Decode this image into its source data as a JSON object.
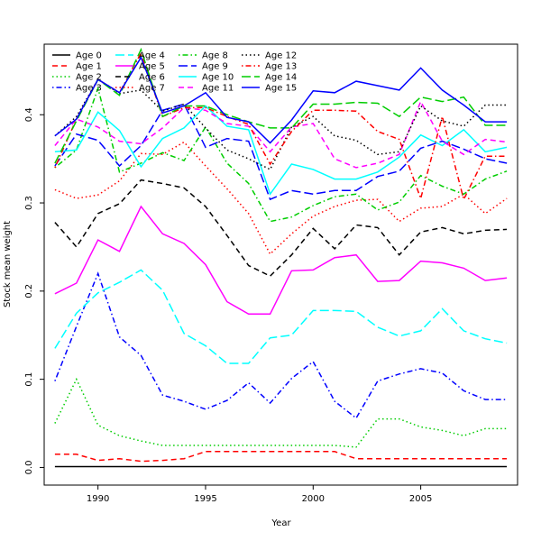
{
  "chart_data": {
    "type": "line",
    "title": "",
    "xlabel": "Year",
    "ylabel": "Stock mean weight",
    "xlim": [
      1987.5,
      2009.5
    ],
    "ylim": [
      -0.02,
      0.48
    ],
    "x_ticks": [
      1990,
      1995,
      2000,
      2005
    ],
    "y_ticks": [
      0.0,
      0.1,
      0.2,
      0.3,
      0.4
    ],
    "y_tick_labels": [
      "0.0",
      "0.1",
      "0.2",
      "0.3",
      "0.4"
    ],
    "grid": false,
    "legend_position": "top-left",
    "x": [
      1988,
      1989,
      1990,
      1991,
      1992,
      1993,
      1994,
      1995,
      1996,
      1997,
      1998,
      1999,
      2000,
      2001,
      2002,
      2003,
      2004,
      2005,
      2006,
      2007,
      2008,
      2009
    ],
    "series": [
      {
        "name": "Age 0",
        "color": "#000000",
        "dash": "solid",
        "values": [
          0.001,
          0.001,
          0.001,
          0.001,
          0.001,
          0.001,
          0.001,
          0.001,
          0.001,
          0.001,
          0.001,
          0.001,
          0.001,
          0.001,
          0.001,
          0.001,
          0.001,
          0.001,
          0.001,
          0.001,
          0.001,
          0.001
        ]
      },
      {
        "name": "Age 1",
        "color": "#ff0000",
        "dash": "dashed",
        "values": [
          0.015,
          0.015,
          0.008,
          0.01,
          0.007,
          0.008,
          0.01,
          0.018,
          0.018,
          0.018,
          0.018,
          0.018,
          0.018,
          0.018,
          0.01,
          0.01,
          0.01,
          0.01,
          0.01,
          0.01,
          0.01,
          0.01
        ]
      },
      {
        "name": "Age 2",
        "color": "#00cd00",
        "dash": "dotted",
        "values": [
          0.05,
          0.1,
          0.048,
          0.036,
          0.03,
          0.025,
          0.025,
          0.025,
          0.025,
          0.025,
          0.025,
          0.025,
          0.025,
          0.025,
          0.023,
          0.055,
          0.055,
          0.046,
          0.042,
          0.036,
          0.044,
          0.044
        ]
      },
      {
        "name": "Age 3",
        "color": "#0000ff",
        "dash": "dotdash",
        "values": [
          0.098,
          0.16,
          0.22,
          0.148,
          0.127,
          0.082,
          0.075,
          0.066,
          0.076,
          0.096,
          0.073,
          0.101,
          0.12,
          0.075,
          0.056,
          0.098,
          0.106,
          0.112,
          0.107,
          0.087,
          0.077,
          0.077
        ]
      },
      {
        "name": "Age 4",
        "color": "#00ffff",
        "dash": "longdash",
        "values": [
          0.135,
          0.175,
          0.198,
          0.21,
          0.224,
          0.201,
          0.152,
          0.138,
          0.118,
          0.118,
          0.147,
          0.15,
          0.178,
          0.178,
          0.177,
          0.159,
          0.149,
          0.155,
          0.18,
          0.155,
          0.146,
          0.141
        ]
      },
      {
        "name": "Age 5",
        "color": "#ff00ff",
        "dash": "solid",
        "values": [
          0.197,
          0.209,
          0.258,
          0.245,
          0.296,
          0.265,
          0.254,
          0.23,
          0.188,
          0.174,
          0.174,
          0.223,
          0.224,
          0.238,
          0.241,
          0.211,
          0.212,
          0.234,
          0.232,
          0.226,
          0.212,
          0.215
        ]
      },
      {
        "name": "Age 6",
        "color": "#000000",
        "dash": "dashed",
        "values": [
          0.278,
          0.25,
          0.288,
          0.299,
          0.326,
          0.322,
          0.317,
          0.296,
          0.263,
          0.229,
          0.217,
          0.241,
          0.271,
          0.248,
          0.275,
          0.272,
          0.241,
          0.267,
          0.272,
          0.265,
          0.269,
          0.27
        ]
      },
      {
        "name": "Age 7",
        "color": "#ff0000",
        "dash": "dotted",
        "values": [
          0.315,
          0.305,
          0.309,
          0.325,
          0.356,
          0.355,
          0.369,
          0.342,
          0.316,
          0.288,
          0.242,
          0.265,
          0.285,
          0.296,
          0.303,
          0.304,
          0.279,
          0.294,
          0.296,
          0.31,
          0.288,
          0.305
        ]
      },
      {
        "name": "Age 8",
        "color": "#00cd00",
        "dash": "dotdash",
        "values": [
          0.34,
          0.36,
          0.43,
          0.335,
          0.345,
          0.357,
          0.348,
          0.386,
          0.345,
          0.322,
          0.279,
          0.284,
          0.297,
          0.307,
          0.31,
          0.292,
          0.301,
          0.331,
          0.319,
          0.31,
          0.327,
          0.336
        ]
      },
      {
        "name": "Age 9",
        "color": "#0000ff",
        "dash": "longdash",
        "values": [
          0.342,
          0.378,
          0.371,
          0.342,
          0.365,
          0.405,
          0.412,
          0.363,
          0.373,
          0.37,
          0.304,
          0.314,
          0.31,
          0.314,
          0.314,
          0.33,
          0.336,
          0.362,
          0.37,
          0.361,
          0.35,
          0.345
        ]
      },
      {
        "name": "Age 10",
        "color": "#00ffff",
        "dash": "solid",
        "values": [
          0.358,
          0.36,
          0.403,
          0.382,
          0.341,
          0.373,
          0.385,
          0.41,
          0.387,
          0.383,
          0.31,
          0.344,
          0.338,
          0.327,
          0.327,
          0.335,
          0.352,
          0.377,
          0.365,
          0.383,
          0.358,
          0.363
        ]
      },
      {
        "name": "Age 11",
        "color": "#ff00ff",
        "dash": "dashed",
        "values": [
          0.365,
          0.395,
          0.386,
          0.37,
          0.367,
          0.385,
          0.408,
          0.405,
          0.39,
          0.387,
          0.358,
          0.386,
          0.39,
          0.35,
          0.34,
          0.345,
          0.355,
          0.415,
          0.37,
          0.355,
          0.372,
          0.369
        ]
      },
      {
        "name": "Age 12",
        "color": "#000000",
        "dash": "dotted",
        "values": [
          0.376,
          0.398,
          0.44,
          0.424,
          0.428,
          0.404,
          0.412,
          0.385,
          0.36,
          0.35,
          0.338,
          0.386,
          0.398,
          0.376,
          0.371,
          0.355,
          0.358,
          0.41,
          0.393,
          0.387,
          0.411,
          0.411
        ]
      },
      {
        "name": "Age 13",
        "color": "#ff0000",
        "dash": "dotdash",
        "values": [
          0.34,
          0.395,
          0.44,
          0.425,
          0.47,
          0.398,
          0.408,
          0.408,
          0.398,
          0.389,
          0.344,
          0.381,
          0.405,
          0.405,
          0.404,
          0.381,
          0.372,
          0.305,
          0.398,
          0.304,
          0.353,
          0.353
        ]
      },
      {
        "name": "Age 14",
        "color": "#00cd00",
        "dash": "longdash",
        "values": [
          0.345,
          0.393,
          0.44,
          0.422,
          0.474,
          0.398,
          0.41,
          0.41,
          0.4,
          0.392,
          0.385,
          0.385,
          0.412,
          0.412,
          0.414,
          0.413,
          0.398,
          0.42,
          0.415,
          0.42,
          0.388,
          0.388
        ]
      },
      {
        "name": "Age 15",
        "color": "#0000ff",
        "dash": "solid",
        "values": [
          0.376,
          0.395,
          0.44,
          0.425,
          0.465,
          0.402,
          0.41,
          0.425,
          0.397,
          0.392,
          0.368,
          0.394,
          0.427,
          0.425,
          0.438,
          0.433,
          0.428,
          0.453,
          0.428,
          0.411,
          0.392,
          0.392
        ]
      }
    ]
  }
}
